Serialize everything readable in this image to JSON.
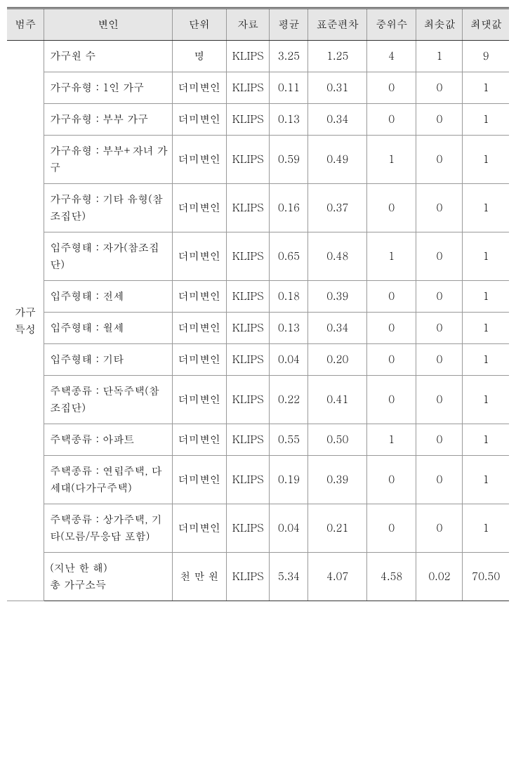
{
  "table": {
    "columns": [
      "범주",
      "변인",
      "단위",
      "자료",
      "평균",
      "표준편차",
      "중위수",
      "최솟값",
      "최댓값"
    ],
    "category_label": "가구 특성",
    "groups": [
      {
        "rows": [
          {
            "var": "가구원 수",
            "unit": "명",
            "data": "KLIPS",
            "mean": "3.25",
            "sd": "1.25",
            "med": "4",
            "min": "1",
            "max": "9"
          },
          {
            "var": "가구유형 : 1인 가구",
            "unit": "더미변인",
            "data": "KLIPS",
            "mean": "0.11",
            "sd": "0.31",
            "med": "0",
            "min": "0",
            "max": "1"
          },
          {
            "var": "가구유형 : 부부 가구",
            "unit": "더미변인",
            "data": "KLIPS",
            "mean": "0.13",
            "sd": "0.34",
            "med": "0",
            "min": "0",
            "max": "1"
          },
          {
            "var": "가구유형 : 부부+자녀 가구",
            "unit": "더미변인",
            "data": "KLIPS",
            "mean": "0.59",
            "sd": "0.49",
            "med": "1",
            "min": "0",
            "max": "1"
          },
          {
            "var": "가구유형 : 기타 유형(참조집단)",
            "unit": "더미변인",
            "data": "KLIPS",
            "mean": "0.16",
            "sd": "0.37",
            "med": "0",
            "min": "0",
            "max": "1"
          }
        ]
      },
      {
        "rows": [
          {
            "var": "입주형태 : 자가(참조집단)",
            "unit": "더미변인",
            "data": "KLIPS",
            "mean": "0.65",
            "sd": "0.48",
            "med": "1",
            "min": "0",
            "max": "1"
          },
          {
            "var": "입주형태 : 전세",
            "unit": "더미변인",
            "data": "KLIPS",
            "mean": "0.18",
            "sd": "0.39",
            "med": "0",
            "min": "0",
            "max": "1"
          },
          {
            "var": "입주형태 : 월세",
            "unit": "더미변인",
            "data": "KLIPS",
            "mean": "0.13",
            "sd": "0.34",
            "med": "0",
            "min": "0",
            "max": "1"
          },
          {
            "var": "입주형태 : 기타",
            "unit": "더미변인",
            "data": "KLIPS",
            "mean": "0.04",
            "sd": "0.20",
            "med": "0",
            "min": "0",
            "max": "1"
          }
        ]
      },
      {
        "rows": [
          {
            "var": "주택종류 : 단독주택(참조집단)",
            "unit": "더미변인",
            "data": "KLIPS",
            "mean": "0.22",
            "sd": "0.41",
            "med": "0",
            "min": "0",
            "max": "1"
          },
          {
            "var": "주택종류 : 아파트",
            "unit": "더미변인",
            "data": "KLIPS",
            "mean": "0.55",
            "sd": "0.50",
            "med": "1",
            "min": "0",
            "max": "1"
          },
          {
            "var": "주택종류 : 연립주택, 다세대(다가구주택)",
            "unit": "더미변인",
            "data": "KLIPS",
            "mean": "0.19",
            "sd": "0.39",
            "med": "0",
            "min": "0",
            "max": "1"
          },
          {
            "var": "주택종류 : 상가주택, 기타(모름/무응답 포함)",
            "unit": "더미변인",
            "data": "KLIPS",
            "mean": "0.04",
            "sd": "0.21",
            "med": "0",
            "min": "0",
            "max": "1"
          }
        ]
      },
      {
        "rows": [
          {
            "var": "(지난 한 해)\n총 가구소득",
            "unit": "천 만 원",
            "data": "KLIPS",
            "mean": "5.34",
            "sd": "4.07",
            "med": "4.58",
            "min": "0.02",
            "max": "70.50"
          }
        ]
      }
    ]
  }
}
